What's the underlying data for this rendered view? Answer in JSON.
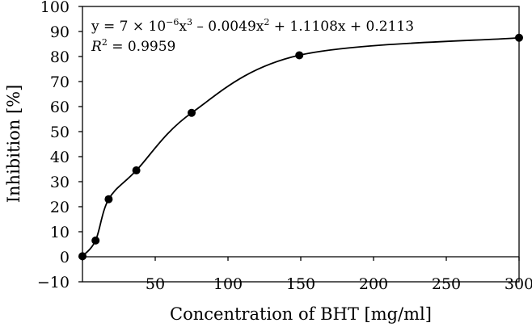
{
  "chart_data": {
    "type": "scatter",
    "title": "",
    "xlabel": "Concentration of BHT [mg/ml]",
    "ylabel": "Inhibition [%]",
    "xlim": [
      0,
      300
    ],
    "ylim": [
      -10,
      100
    ],
    "xticks": [
      50,
      100,
      150,
      200,
      250,
      300
    ],
    "yticks": [
      -10,
      0,
      10,
      20,
      30,
      40,
      50,
      60,
      70,
      80,
      90,
      100
    ],
    "grid": false,
    "points": [
      {
        "x": 0,
        "y": 0.2
      },
      {
        "x": 9,
        "y": 6.5
      },
      {
        "x": 18,
        "y": 23
      },
      {
        "x": 37,
        "y": 34.5
      },
      {
        "x": 75,
        "y": 57.5
      },
      {
        "x": 149,
        "y": 80.5
      },
      {
        "x": 300,
        "y": 87.5
      }
    ],
    "trendline": {
      "type": "cubic",
      "coefficients": {
        "a3": 7e-06,
        "a2": -0.0049,
        "a1": 1.1108,
        "a0": 0.2113
      }
    },
    "annotation": {
      "eq_prefix": "y = 7 × 10",
      "eq_exp": "−6",
      "eq_mid1": "x",
      "eq_pow3": "3",
      "eq_mid2": " – 0.0049x",
      "eq_pow2": "2",
      "eq_suffix": " + 1.1108x + 0.2113",
      "r2_symbol": "R",
      "r2_pow": "2",
      "r2_value": " = 0.9959"
    }
  }
}
